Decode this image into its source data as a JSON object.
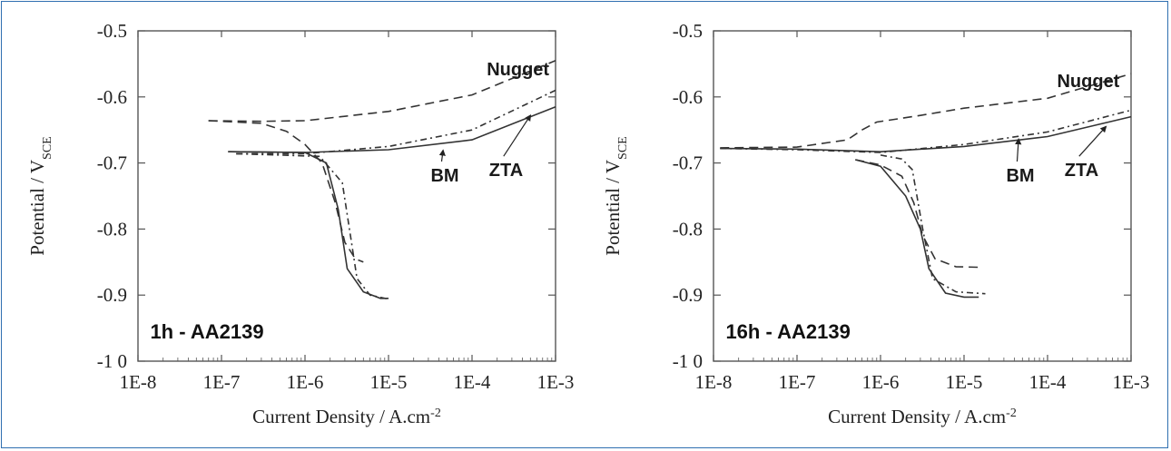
{
  "colors": {
    "frame": "#2f6fb0",
    "curve": "#333333",
    "axis": "#555555"
  },
  "chart_data": [
    {
      "type": "line",
      "panel_label": "1h - AA2139",
      "xlabel": "Current Density / A.cm",
      "xlabel_sup": "-2",
      "ylabel": "Potential / V",
      "ylabel_sub": "SCE",
      "x_scale": "log",
      "xlim": [
        1e-08,
        0.001
      ],
      "ylim": [
        -1.0,
        -0.5
      ],
      "x_ticks": [
        {
          "v": 1e-08,
          "label": "1E-8"
        },
        {
          "v": 1e-07,
          "label": "1E-7"
        },
        {
          "v": 1e-06,
          "label": "1E-6"
        },
        {
          "v": 1e-05,
          "label": "1E-5"
        },
        {
          "v": 0.0001,
          "label": "1E-4"
        },
        {
          "v": 0.001,
          "label": "1E-3"
        }
      ],
      "y_ticks": [
        {
          "v": -0.5,
          "label": "-0.5"
        },
        {
          "v": -0.6,
          "label": "-0.6"
        },
        {
          "v": -0.7,
          "label": "-0.7"
        },
        {
          "v": -0.8,
          "label": "-0.8"
        },
        {
          "v": -0.9,
          "label": "-0.9"
        },
        {
          "v": -1.0,
          "label": "-1 0"
        }
      ],
      "series": [
        {
          "name": "Nugget",
          "style": "dashed",
          "anodic": [
            [
              7e-08,
              -0.636
            ],
            [
              3e-07,
              -0.637
            ],
            [
              1e-06,
              -0.636
            ],
            [
              1e-05,
              -0.622
            ],
            [
              0.0001,
              -0.597
            ],
            [
              0.001,
              -0.545
            ]
          ],
          "cathodic": [
            [
              7e-08,
              -0.636
            ],
            [
              3e-07,
              -0.64
            ],
            [
              6e-07,
              -0.652
            ],
            [
              1e-06,
              -0.672
            ],
            [
              1.6e-06,
              -0.7
            ],
            [
              2.3e-06,
              -0.76
            ],
            [
              3e-06,
              -0.82
            ],
            [
              4e-06,
              -0.845
            ],
            [
              5e-06,
              -0.85
            ]
          ]
        },
        {
          "name": "BM",
          "style": "solid",
          "anodic": [
            [
              1.2e-07,
              -0.683
            ],
            [
              1e-06,
              -0.684
            ],
            [
              1e-05,
              -0.68
            ],
            [
              0.0001,
              -0.665
            ],
            [
              0.001,
              -0.615
            ]
          ],
          "cathodic": [
            [
              1.2e-07,
              -0.683
            ],
            [
              1e-06,
              -0.684
            ],
            [
              1.8e-06,
              -0.7
            ],
            [
              2.5e-06,
              -0.77
            ],
            [
              3.2e-06,
              -0.86
            ],
            [
              5e-06,
              -0.895
            ],
            [
              8e-06,
              -0.905
            ],
            [
              1e-05,
              -0.905
            ]
          ]
        },
        {
          "name": "ZTA",
          "style": "dash-dot",
          "anodic": [
            [
              1.5e-07,
              -0.686
            ],
            [
              1e-06,
              -0.686
            ],
            [
              1e-05,
              -0.675
            ],
            [
              0.0001,
              -0.65
            ],
            [
              0.001,
              -0.59
            ]
          ],
          "cathodic": [
            [
              1.5e-07,
              -0.686
            ],
            [
              1.5e-06,
              -0.69
            ],
            [
              2.8e-06,
              -0.73
            ],
            [
              3.6e-06,
              -0.82
            ],
            [
              4.2e-06,
              -0.875
            ],
            [
              6e-06,
              -0.9
            ],
            [
              1e-05,
              -0.906
            ]
          ]
        }
      ],
      "annotations": [
        {
          "text": "Nugget",
          "x": 0.00015,
          "y": -0.567,
          "arrow": null
        },
        {
          "text": "BM",
          "x": 3.2e-05,
          "y": -0.728,
          "arrow": [
            4.5e-05,
            -0.681
          ]
        },
        {
          "text": "ZTA",
          "x": 0.00016,
          "y": -0.72,
          "arrow": [
            0.0005,
            -0.628
          ]
        },
        {
          "text": "1h - AA2139",
          "x": 1.4e-08,
          "y": -0.966,
          "arrow": null,
          "panel": true
        }
      ]
    },
    {
      "type": "line",
      "panel_label": "16h - AA2139",
      "xlabel": "Current Density / A.cm",
      "xlabel_sup": "-2",
      "ylabel": "Potential / V",
      "ylabel_sub": "SCE",
      "x_scale": "log",
      "xlim": [
        1e-08,
        0.001
      ],
      "ylim": [
        -1.0,
        -0.5
      ],
      "x_ticks": [
        {
          "v": 1e-08,
          "label": "1E-8"
        },
        {
          "v": 1e-07,
          "label": "1E-7"
        },
        {
          "v": 1e-06,
          "label": "1E-6"
        },
        {
          "v": 1e-05,
          "label": "1E-5"
        },
        {
          "v": 0.0001,
          "label": "1E-4"
        },
        {
          "v": 0.001,
          "label": "1E-3"
        }
      ],
      "y_ticks": [
        {
          "v": -0.5,
          "label": "-0.5"
        },
        {
          "v": -0.6,
          "label": "-0.6"
        },
        {
          "v": -0.7,
          "label": "-0.7"
        },
        {
          "v": -0.8,
          "label": "-0.8"
        },
        {
          "v": -0.9,
          "label": "-0.9"
        },
        {
          "v": -1.0,
          "label": "-1 0"
        }
      ],
      "series": [
        {
          "name": "Nugget",
          "style": "dashed",
          "anodic": [
            [
              1.2e-08,
              -0.677
            ],
            [
              1e-07,
              -0.676
            ],
            [
              4e-07,
              -0.665
            ],
            [
              6e-07,
              -0.65
            ],
            [
              9e-07,
              -0.638
            ],
            [
              3e-06,
              -0.628
            ],
            [
              1e-05,
              -0.617
            ],
            [
              0.0001,
              -0.602
            ],
            [
              0.001,
              -0.565
            ]
          ],
          "cathodic": [
            [
              5e-07,
              -0.695
            ],
            [
              1e-06,
              -0.703
            ],
            [
              1.8e-06,
              -0.72
            ],
            [
              2.5e-06,
              -0.76
            ],
            [
              3.2e-06,
              -0.81
            ],
            [
              4.5e-06,
              -0.845
            ],
            [
              8e-06,
              -0.857
            ],
            [
              1.6e-05,
              -0.858
            ]
          ]
        },
        {
          "name": "BM",
          "style": "solid",
          "anodic": [
            [
              1.2e-08,
              -0.678
            ],
            [
              1e-07,
              -0.679
            ],
            [
              1e-06,
              -0.683
            ],
            [
              1e-05,
              -0.675
            ],
            [
              0.0001,
              -0.66
            ],
            [
              0.001,
              -0.63
            ]
          ],
          "cathodic": [
            [
              5e-07,
              -0.695
            ],
            [
              1e-06,
              -0.705
            ],
            [
              2e-06,
              -0.75
            ],
            [
              3e-06,
              -0.8
            ],
            [
              3.8e-06,
              -0.86
            ],
            [
              6e-06,
              -0.897
            ],
            [
              1e-05,
              -0.903
            ],
            [
              1.5e-05,
              -0.903
            ]
          ]
        },
        {
          "name": "ZTA",
          "style": "dash-dot",
          "anodic": [
            [
              1.2e-08,
              -0.678
            ],
            [
              1e-07,
              -0.68
            ],
            [
              1e-06,
              -0.684
            ],
            [
              1e-05,
              -0.672
            ],
            [
              0.0001,
              -0.653
            ],
            [
              0.001,
              -0.62
            ]
          ],
          "cathodic": [
            [
              1e-06,
              -0.688
            ],
            [
              1.8e-06,
              -0.694
            ],
            [
              2.4e-06,
              -0.71
            ],
            [
              3.2e-06,
              -0.8
            ],
            [
              4.2e-06,
              -0.875
            ],
            [
              8e-06,
              -0.895
            ],
            [
              1.8e-05,
              -0.898
            ]
          ]
        }
      ],
      "annotations": [
        {
          "text": "Nugget",
          "x": 0.00013,
          "y": -0.585,
          "arrow": null
        },
        {
          "text": "BM",
          "x": 3.2e-05,
          "y": -0.728,
          "arrow": [
            4.5e-05,
            -0.664
          ]
        },
        {
          "text": "ZTA",
          "x": 0.00016,
          "y": -0.72,
          "arrow": [
            0.0005,
            -0.645
          ]
        },
        {
          "text": "16h - AA2139",
          "x": 1.4e-08,
          "y": -0.966,
          "arrow": null,
          "panel": true
        }
      ]
    }
  ]
}
